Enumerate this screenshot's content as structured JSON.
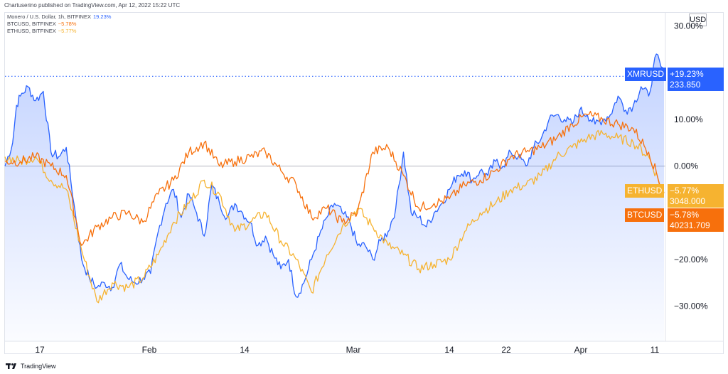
{
  "header": {
    "published": "Chartuserino published on TradingView.com, Apr 12, 2022 15:22 UTC"
  },
  "legend": [
    {
      "label": "Monero / U.S. Dollar, 1h, BITFINEX",
      "value": "19.23%",
      "color": "#2962ff"
    },
    {
      "label": "BTCUSD, BITFINEX",
      "value": "−5.78%",
      "color": "#f7700c"
    },
    {
      "label": "ETHUSD, BITFINEX",
      "value": "−5.77%",
      "color": "#f6b330"
    }
  ],
  "unit": "USD",
  "tags": {
    "xmr": {
      "name": "XMRUSD",
      "change": "+19.23%",
      "price": "233.850",
      "color": "#2962ff"
    },
    "eth": {
      "name": "ETHUSD",
      "change": "−5.77%",
      "price": "3048.000",
      "color": "#f6b330"
    },
    "btc": {
      "name": "BTCUSD",
      "change": "−5.78%",
      "price": "40231.709",
      "color": "#f7700c"
    }
  },
  "footer": {
    "brand": "TradingView"
  },
  "chart_data": {
    "type": "line",
    "x_axis_labels": [
      "17",
      "Feb",
      "14",
      "Mar",
      "14",
      "22",
      "Apr",
      "11"
    ],
    "y_axis_labels": [
      "30.00%",
      "10.00%",
      "0.00%",
      "−20.00%",
      "−30.00%"
    ],
    "y_unit": "%",
    "ylim": [
      -36,
      31
    ],
    "xlim": [
      0,
      86
    ],
    "series": [
      {
        "name": "XMRUSD",
        "color": "#2962ff",
        "area": true,
        "x": [
          0,
          1,
          1.5,
          2,
          3,
          4,
          5,
          6,
          7,
          8,
          9,
          10,
          11,
          12,
          13,
          14,
          15,
          16,
          17,
          18,
          19,
          20,
          21,
          22,
          23,
          24,
          25,
          26,
          27,
          28,
          29,
          30,
          31,
          32,
          33,
          34,
          35,
          36,
          37,
          38,
          39,
          40,
          41,
          42,
          43,
          44,
          45,
          46,
          47,
          48,
          49,
          50,
          51,
          52,
          53,
          54,
          55,
          56,
          57,
          58,
          59,
          60,
          61,
          62,
          63,
          64,
          65,
          66,
          67,
          68,
          69,
          70,
          71,
          72,
          73,
          74,
          75,
          76,
          77,
          78,
          79,
          80,
          81,
          82,
          83,
          84,
          85,
          86
        ],
        "y": [
          0,
          5,
          13,
          15,
          17,
          14,
          16,
          3,
          2,
          4,
          -8,
          -20,
          -24,
          -26,
          -25,
          -26,
          -21,
          -24,
          -25,
          -24,
          -23,
          -14,
          -8,
          -5,
          -11,
          -6,
          -10,
          -15,
          -4,
          -8,
          -11,
          -8,
          -10,
          -12,
          -17,
          -15,
          -19,
          -22,
          -20,
          -28,
          -25,
          -20,
          -15,
          -11,
          -8,
          -10,
          -12,
          -17,
          -17,
          -20,
          -16,
          -14,
          -9,
          3,
          -10,
          -11,
          -13,
          -10,
          -8,
          -5,
          -2,
          -1,
          -3,
          -1,
          -2,
          1,
          0,
          3,
          2,
          0,
          4,
          6,
          10,
          11,
          10,
          9,
          12,
          11,
          9,
          10,
          11,
          15,
          12,
          13,
          17,
          15,
          24,
          19.23
        ]
      },
      {
        "name": "ETHUSD",
        "color": "#f6b330",
        "x": [
          0,
          2,
          4,
          6,
          8,
          10,
          12,
          14,
          16,
          18,
          20,
          22,
          24,
          26,
          28,
          30,
          32,
          34,
          36,
          38,
          40,
          42,
          44,
          46,
          48,
          50,
          52,
          54,
          56,
          58,
          60,
          62,
          64,
          66,
          68,
          70,
          72,
          74,
          76,
          78,
          80,
          82,
          84,
          86
        ],
        "y": [
          2,
          1,
          2,
          -3,
          -5,
          -18,
          -29,
          -25,
          -26,
          -24,
          -19,
          -12,
          -8,
          -3,
          -6,
          -14,
          -12,
          -10,
          -16,
          -20,
          -27,
          -19,
          -13,
          -9,
          -13,
          -17,
          -19,
          -22,
          -21,
          -20,
          -14,
          -10,
          -8,
          -5,
          -4,
          -2,
          2,
          4,
          6,
          7,
          6,
          5,
          2,
          -5.77
        ]
      },
      {
        "name": "BTCUSD",
        "color": "#f7700c",
        "x": [
          0,
          2,
          4,
          6,
          8,
          10,
          12,
          14,
          16,
          18,
          20,
          22,
          24,
          26,
          28,
          30,
          32,
          34,
          36,
          38,
          40,
          42,
          44,
          46,
          48,
          50,
          52,
          54,
          56,
          58,
          60,
          62,
          64,
          66,
          68,
          70,
          72,
          74,
          76,
          78,
          80,
          82,
          84,
          86
        ],
        "y": [
          1,
          1,
          2,
          0,
          -2,
          -17,
          -13,
          -11,
          -10,
          -12,
          -6,
          -3,
          3,
          5,
          0,
          1,
          2,
          3,
          -1,
          -4,
          -11,
          -9,
          -12,
          -10,
          3,
          4,
          -2,
          -9,
          -8,
          -7,
          -4,
          -3,
          -1,
          2,
          3,
          4,
          6,
          9,
          11,
          10,
          9,
          8,
          3,
          -5.78
        ]
      }
    ],
    "grid": false,
    "zero_line": true,
    "last_value_line": {
      "series": "XMRUSD",
      "value": 19.23
    }
  }
}
